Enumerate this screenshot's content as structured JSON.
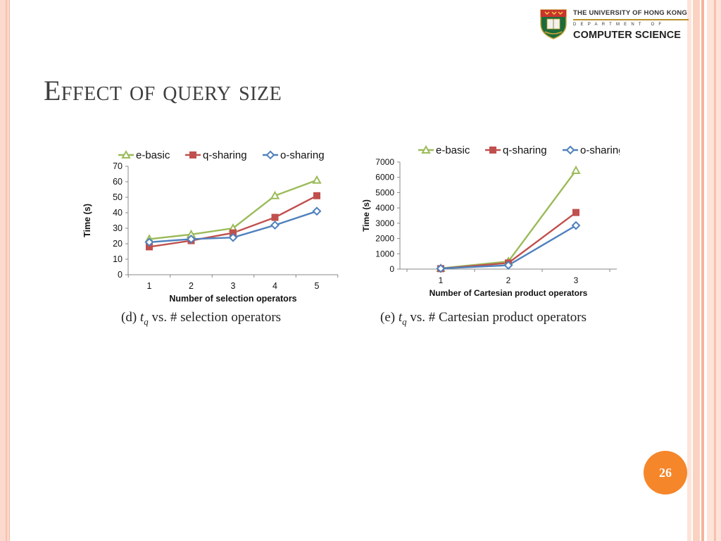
{
  "logo": {
    "university": "THE UNIVERSITY OF HONG KONG",
    "department": "DEPARTMENT OF",
    "name": "COMPUTER SCIENCE"
  },
  "slide": {
    "title": "Effect of query size",
    "page_number": "26"
  },
  "captions": {
    "d_prefix": "(d)",
    "d_suffix": "vs. # selection operators",
    "e_prefix": "(e)",
    "e_suffix": "vs. # Cartesian product operators",
    "var": "t",
    "var_sub": "q"
  },
  "colors": {
    "e_basic": "#9bbb59",
    "q_sharing": "#c0504d",
    "o_sharing": "#4f81bd",
    "accent": "#f5862a"
  },
  "chart_data": [
    {
      "type": "line",
      "x": [
        1,
        2,
        3,
        4,
        5
      ],
      "xlabel": "Number of selection operators",
      "ylabel": "Time (s)",
      "ylim": [
        0,
        70
      ],
      "yticks": [
        0,
        10,
        20,
        30,
        40,
        50,
        60,
        70
      ],
      "legend_position": "top",
      "series": [
        {
          "name": "e-basic",
          "marker": "triangle",
          "color": "#9bbb59",
          "values": [
            23,
            26,
            30,
            51,
            61
          ]
        },
        {
          "name": "q-sharing",
          "marker": "square",
          "color": "#c0504d",
          "values": [
            18,
            22,
            27,
            37,
            51
          ]
        },
        {
          "name": "o-sharing",
          "marker": "diamond",
          "color": "#4f81bd",
          "values": [
            21,
            23,
            24,
            32,
            41
          ]
        }
      ]
    },
    {
      "type": "line",
      "x": [
        1,
        2,
        3
      ],
      "xlabel": "Number of Cartesian product operators",
      "ylabel": "Time (s)",
      "ylim": [
        0,
        7000
      ],
      "yticks": [
        0,
        1000,
        2000,
        3000,
        4000,
        5000,
        6000,
        7000
      ],
      "legend_position": "top",
      "series": [
        {
          "name": "e-basic",
          "marker": "triangle",
          "color": "#9bbb59",
          "values": [
            50,
            500,
            6450
          ]
        },
        {
          "name": "q-sharing",
          "marker": "square",
          "color": "#c0504d",
          "values": [
            30,
            400,
            3700
          ]
        },
        {
          "name": "o-sharing",
          "marker": "diamond",
          "color": "#4f81bd",
          "values": [
            40,
            250,
            2850
          ]
        }
      ]
    }
  ]
}
